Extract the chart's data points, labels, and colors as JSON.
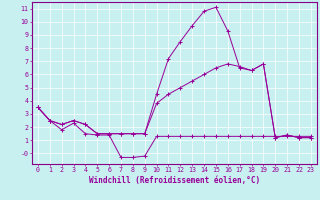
{
  "xlabel": "Windchill (Refroidissement éolien,°C)",
  "bg_color": "#c8f0f0",
  "line_color": "#990099",
  "xlim": [
    -0.5,
    23.5
  ],
  "ylim": [
    -0.8,
    11.5
  ],
  "yticks": [
    0,
    1,
    2,
    3,
    4,
    5,
    6,
    7,
    8,
    9,
    10,
    11
  ],
  "ytick_labels": [
    "-0",
    "1",
    "2",
    "3",
    "4",
    "5",
    "6",
    "7",
    "8",
    "9",
    "10",
    "11"
  ],
  "xticks": [
    0,
    1,
    2,
    3,
    4,
    5,
    6,
    7,
    8,
    9,
    10,
    11,
    12,
    13,
    14,
    15,
    16,
    17,
    18,
    19,
    20,
    21,
    22,
    23
  ],
  "line1_x": [
    0,
    1,
    2,
    3,
    4,
    5,
    6,
    7,
    8,
    9,
    10,
    11,
    12,
    13,
    14,
    15,
    16,
    17,
    18,
    19,
    20,
    21,
    22,
    23
  ],
  "line1_y": [
    3.5,
    2.5,
    1.8,
    2.3,
    1.5,
    1.4,
    1.4,
    -0.3,
    -0.3,
    -0.2,
    1.3,
    1.3,
    1.3,
    1.3,
    1.3,
    1.3,
    1.3,
    1.3,
    1.3,
    1.3,
    1.3,
    1.3,
    1.3,
    1.3
  ],
  "line2_x": [
    0,
    1,
    2,
    3,
    4,
    5,
    6,
    7,
    8,
    9,
    10,
    11,
    12,
    13,
    14,
    15,
    16,
    17,
    18,
    19,
    20,
    21,
    22,
    23
  ],
  "line2_y": [
    3.5,
    2.5,
    2.2,
    2.5,
    2.2,
    1.5,
    1.5,
    1.5,
    1.5,
    1.5,
    4.5,
    7.2,
    8.5,
    9.7,
    10.8,
    11.1,
    9.3,
    6.5,
    6.3,
    6.8,
    1.2,
    1.4,
    1.2,
    1.2
  ],
  "line3_x": [
    0,
    1,
    2,
    3,
    4,
    5,
    6,
    7,
    8,
    9,
    10,
    11,
    12,
    13,
    14,
    15,
    16,
    17,
    18,
    19,
    20,
    21,
    22,
    23
  ],
  "line3_y": [
    3.5,
    2.5,
    2.2,
    2.5,
    2.2,
    1.5,
    1.5,
    1.5,
    1.5,
    1.5,
    3.8,
    4.5,
    5.0,
    5.5,
    6.0,
    6.5,
    6.8,
    6.6,
    6.3,
    6.8,
    1.2,
    1.4,
    1.2,
    1.2
  ],
  "xlabel_fontsize": 5.5,
  "tick_fontsize": 4.8,
  "grid_color": "#ffffff",
  "spine_color": "#880088"
}
